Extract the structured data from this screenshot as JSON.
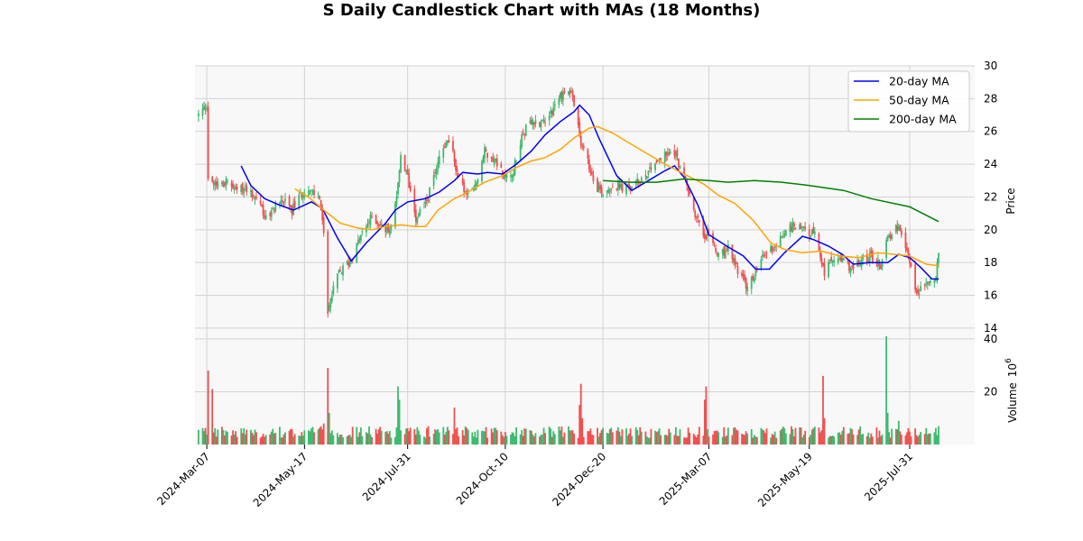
{
  "chart_data": {
    "type": "candlestick",
    "title": "S Daily Candlestick Chart with MAs (18 Months)",
    "price_panel": {
      "ylabel": "Price",
      "ylim": [
        13.5,
        30
      ],
      "yticks": [
        14,
        16,
        18,
        20,
        22,
        24,
        26,
        28,
        30
      ],
      "grid": true,
      "legend_position": "top-right"
    },
    "volume_panel": {
      "ylabel": "Volume",
      "exponent_label": "10",
      "exponent_power": "6",
      "ylim": [
        0,
        41
      ],
      "yticks": [
        20,
        40
      ]
    },
    "x_axis": {
      "start": "2024-03-01",
      "end": "2025-08-21",
      "ticks": [
        "2024-Mar-07",
        "2024-May-17",
        "2024-Jul-31",
        "2024-Oct-10",
        "2024-Dec-20",
        "2025-Mar-07",
        "2025-May-19",
        "2025-Jul-31"
      ],
      "tick_dates": [
        "2024-03-07",
        "2024-05-17",
        "2024-07-31",
        "2024-10-10",
        "2024-12-20",
        "2025-03-07",
        "2025-05-19",
        "2025-07-31"
      ]
    },
    "colors": {
      "up": "#3cba6f",
      "down": "#f05050",
      "ma20": "#0000ff",
      "ma50": "#ffa500",
      "ma200": "#008000",
      "panel_bg": "#f8f8f8",
      "grid": "#d3d3d3"
    },
    "close_path": [
      [
        "2024-03-01",
        27.0
      ],
      [
        "2024-03-07",
        27.6
      ],
      [
        "2024-03-08",
        23.2
      ],
      [
        "2024-03-13",
        22.8
      ],
      [
        "2024-03-20",
        23.0
      ],
      [
        "2024-03-28",
        22.3
      ],
      [
        "2024-04-05",
        22.6
      ],
      [
        "2024-04-15",
        21.6
      ],
      [
        "2024-04-20",
        20.4
      ],
      [
        "2024-04-25",
        21.4
      ],
      [
        "2024-05-01",
        21.8
      ],
      [
        "2024-05-08",
        21.2
      ],
      [
        "2024-05-17",
        22.5
      ],
      [
        "2024-05-28",
        22.0
      ],
      [
        "2024-05-31",
        19.6
      ],
      [
        "2024-06-03",
        15.1
      ],
      [
        "2024-06-10",
        17.2
      ],
      [
        "2024-06-20",
        18.2
      ],
      [
        "2024-06-27",
        19.6
      ],
      [
        "2024-07-05",
        20.8
      ],
      [
        "2024-07-15",
        20.0
      ],
      [
        "2024-07-20",
        20.2
      ],
      [
        "2024-07-26",
        24.3
      ],
      [
        "2024-07-31",
        23.2
      ],
      [
        "2024-08-06",
        20.8
      ],
      [
        "2024-08-15",
        22.0
      ],
      [
        "2024-08-23",
        24.5
      ],
      [
        "2024-08-30",
        25.6
      ],
      [
        "2024-09-05",
        23.5
      ],
      [
        "2024-09-12",
        22.0
      ],
      [
        "2024-09-18",
        22.6
      ],
      [
        "2024-09-25",
        24.8
      ],
      [
        "2024-10-03",
        24.2
      ],
      [
        "2024-10-10",
        23.2
      ],
      [
        "2024-10-16",
        23.6
      ],
      [
        "2024-10-23",
        26.0
      ],
      [
        "2024-10-30",
        26.5
      ],
      [
        "2024-11-06",
        26.6
      ],
      [
        "2024-11-13",
        27.3
      ],
      [
        "2024-11-20",
        28.3
      ],
      [
        "2024-11-27",
        28.5
      ],
      [
        "2024-12-04",
        25.3
      ],
      [
        "2024-12-11",
        23.6
      ],
      [
        "2024-12-16",
        22.6
      ],
      [
        "2024-12-20",
        22.3
      ],
      [
        "2024-12-27",
        22.7
      ],
      [
        "2025-01-06",
        22.5
      ],
      [
        "2025-01-13",
        22.8
      ],
      [
        "2025-01-20",
        23.4
      ],
      [
        "2025-01-27",
        24.2
      ],
      [
        "2025-02-03",
        24.5
      ],
      [
        "2025-02-10",
        24.8
      ],
      [
        "2025-02-17",
        23.2
      ],
      [
        "2025-02-24",
        21.2
      ],
      [
        "2025-03-03",
        19.6
      ],
      [
        "2025-03-07",
        19.8
      ],
      [
        "2025-03-14",
        18.3
      ],
      [
        "2025-03-21",
        18.8
      ],
      [
        "2025-03-28",
        17.6
      ],
      [
        "2025-04-04",
        16.4
      ],
      [
        "2025-04-09",
        17.2
      ],
      [
        "2025-04-17",
        18.6
      ],
      [
        "2025-04-25",
        19.1
      ],
      [
        "2025-05-02",
        20.0
      ],
      [
        "2025-05-09",
        20.3
      ],
      [
        "2025-05-19",
        19.9
      ],
      [
        "2025-05-23",
        19.6
      ],
      [
        "2025-05-30",
        17.4
      ],
      [
        "2025-06-06",
        18.3
      ],
      [
        "2025-06-13",
        18.0
      ],
      [
        "2025-06-20",
        17.6
      ],
      [
        "2025-06-27",
        18.2
      ],
      [
        "2025-07-03",
        18.4
      ],
      [
        "2025-07-10",
        17.8
      ],
      [
        "2025-07-15",
        19.6
      ],
      [
        "2025-07-22",
        20.1
      ],
      [
        "2025-07-31",
        18.2
      ],
      [
        "2025-08-05",
        16.0
      ],
      [
        "2025-08-12",
        16.8
      ],
      [
        "2025-08-19",
        17.0
      ],
      [
        "2025-08-21",
        18.8
      ]
    ],
    "volume_spikes": [
      [
        "2024-03-08",
        28
      ],
      [
        "2024-03-11",
        21
      ],
      [
        "2024-05-31",
        8
      ],
      [
        "2024-06-03",
        29
      ],
      [
        "2024-06-04",
        12
      ],
      [
        "2024-07-24",
        22
      ],
      [
        "2024-07-25",
        17
      ],
      [
        "2024-09-03",
        14
      ],
      [
        "2024-12-03",
        15
      ],
      [
        "2024-12-04",
        23
      ],
      [
        "2024-12-05",
        10
      ],
      [
        "2025-03-04",
        17
      ],
      [
        "2025-03-05",
        22
      ],
      [
        "2025-05-29",
        26
      ],
      [
        "2025-05-30",
        10
      ],
      [
        "2025-07-14",
        41
      ],
      [
        "2025-07-15",
        12
      ],
      [
        "2025-07-23",
        9
      ]
    ],
    "series": [
      {
        "name": "20-day MA",
        "start": "2024-04-01",
        "points": [
          [
            "2024-04-01",
            23.9
          ],
          [
            "2024-04-08",
            22.7
          ],
          [
            "2024-04-18",
            21.9
          ],
          [
            "2024-04-29",
            21.5
          ],
          [
            "2024-05-09",
            21.2
          ],
          [
            "2024-05-22",
            21.7
          ],
          [
            "2024-05-30",
            21.3
          ],
          [
            "2024-06-10",
            19.5
          ],
          [
            "2024-06-20",
            18.1
          ],
          [
            "2024-07-01",
            19.2
          ],
          [
            "2024-07-15",
            20.4
          ],
          [
            "2024-07-22",
            21.2
          ],
          [
            "2024-07-31",
            21.7
          ],
          [
            "2024-08-13",
            21.9
          ],
          [
            "2024-08-23",
            22.3
          ],
          [
            "2024-09-03",
            23.0
          ],
          [
            "2024-09-09",
            23.5
          ],
          [
            "2024-09-20",
            23.4
          ],
          [
            "2024-09-27",
            23.5
          ],
          [
            "2024-10-08",
            23.4
          ],
          [
            "2024-10-18",
            24.0
          ],
          [
            "2024-10-29",
            24.8
          ],
          [
            "2024-11-08",
            25.8
          ],
          [
            "2024-11-19",
            26.6
          ],
          [
            "2024-11-29",
            27.2
          ],
          [
            "2024-12-03",
            27.6
          ],
          [
            "2024-12-10",
            27.0
          ],
          [
            "2024-12-17",
            25.6
          ],
          [
            "2024-12-30",
            23.3
          ],
          [
            "2025-01-10",
            22.4
          ],
          [
            "2025-01-22",
            23.0
          ],
          [
            "2025-02-03",
            23.6
          ],
          [
            "2025-02-10",
            23.9
          ],
          [
            "2025-02-17",
            23.2
          ],
          [
            "2025-02-27",
            21.5
          ],
          [
            "2025-03-07",
            19.7
          ],
          [
            "2025-03-20",
            19.0
          ],
          [
            "2025-04-01",
            18.4
          ],
          [
            "2025-04-10",
            17.6
          ],
          [
            "2025-04-20",
            17.6
          ],
          [
            "2025-05-01",
            18.6
          ],
          [
            "2025-05-14",
            19.6
          ],
          [
            "2025-05-22",
            19.4
          ],
          [
            "2025-06-02",
            19.0
          ],
          [
            "2025-06-12",
            18.5
          ],
          [
            "2025-06-20",
            17.9
          ],
          [
            "2025-07-01",
            18.0
          ],
          [
            "2025-07-10",
            18.0
          ],
          [
            "2025-07-15",
            18.0
          ],
          [
            "2025-07-23",
            18.5
          ],
          [
            "2025-07-31",
            18.3
          ],
          [
            "2025-08-08",
            17.7
          ],
          [
            "2025-08-16",
            17.0
          ],
          [
            "2025-08-21",
            17.0
          ]
        ]
      },
      {
        "name": "50-day MA",
        "start": "2024-05-10",
        "points": [
          [
            "2024-05-10",
            22.5
          ],
          [
            "2024-05-20",
            22.0
          ],
          [
            "2024-05-31",
            21.2
          ],
          [
            "2024-06-12",
            20.4
          ],
          [
            "2024-06-25",
            20.1
          ],
          [
            "2024-07-05",
            20.0
          ],
          [
            "2024-07-15",
            20.2
          ],
          [
            "2024-07-26",
            20.3
          ],
          [
            "2024-08-06",
            20.2
          ],
          [
            "2024-08-13",
            20.2
          ],
          [
            "2024-08-22",
            21.2
          ],
          [
            "2024-09-03",
            21.9
          ],
          [
            "2024-09-13",
            22.3
          ],
          [
            "2024-09-25",
            22.9
          ],
          [
            "2024-10-08",
            23.3
          ],
          [
            "2024-10-18",
            23.8
          ],
          [
            "2024-10-29",
            24.2
          ],
          [
            "2024-11-08",
            24.4
          ],
          [
            "2024-11-19",
            24.9
          ],
          [
            "2024-11-29",
            25.6
          ],
          [
            "2024-12-10",
            26.2
          ],
          [
            "2024-12-16",
            26.3
          ],
          [
            "2024-12-27",
            25.9
          ],
          [
            "2025-01-08",
            25.3
          ],
          [
            "2025-01-20",
            24.7
          ],
          [
            "2025-02-03",
            24.0
          ],
          [
            "2025-02-17",
            23.4
          ],
          [
            "2025-03-03",
            22.8
          ],
          [
            "2025-03-14",
            22.1
          ],
          [
            "2025-03-26",
            21.6
          ],
          [
            "2025-04-08",
            20.6
          ],
          [
            "2025-04-21",
            19.2
          ],
          [
            "2025-05-01",
            18.8
          ],
          [
            "2025-05-14",
            18.6
          ],
          [
            "2025-05-28",
            18.7
          ],
          [
            "2025-06-10",
            18.4
          ],
          [
            "2025-06-24",
            18.3
          ],
          [
            "2025-07-08",
            18.6
          ],
          [
            "2025-07-20",
            18.5
          ],
          [
            "2025-07-31",
            18.4
          ],
          [
            "2025-08-12",
            17.9
          ],
          [
            "2025-08-21",
            17.8
          ]
        ]
      },
      {
        "name": "200-day MA",
        "start": "2024-12-20",
        "points": [
          [
            "2024-12-20",
            23.0
          ],
          [
            "2025-01-08",
            22.9
          ],
          [
            "2025-01-28",
            22.9
          ],
          [
            "2025-02-17",
            23.1
          ],
          [
            "2025-03-07",
            23.0
          ],
          [
            "2025-03-21",
            22.9
          ],
          [
            "2025-04-09",
            23.0
          ],
          [
            "2025-04-29",
            22.9
          ],
          [
            "2025-05-19",
            22.7
          ],
          [
            "2025-06-13",
            22.4
          ],
          [
            "2025-07-03",
            21.9
          ],
          [
            "2025-07-31",
            21.4
          ],
          [
            "2025-08-21",
            20.5
          ]
        ]
      }
    ]
  }
}
